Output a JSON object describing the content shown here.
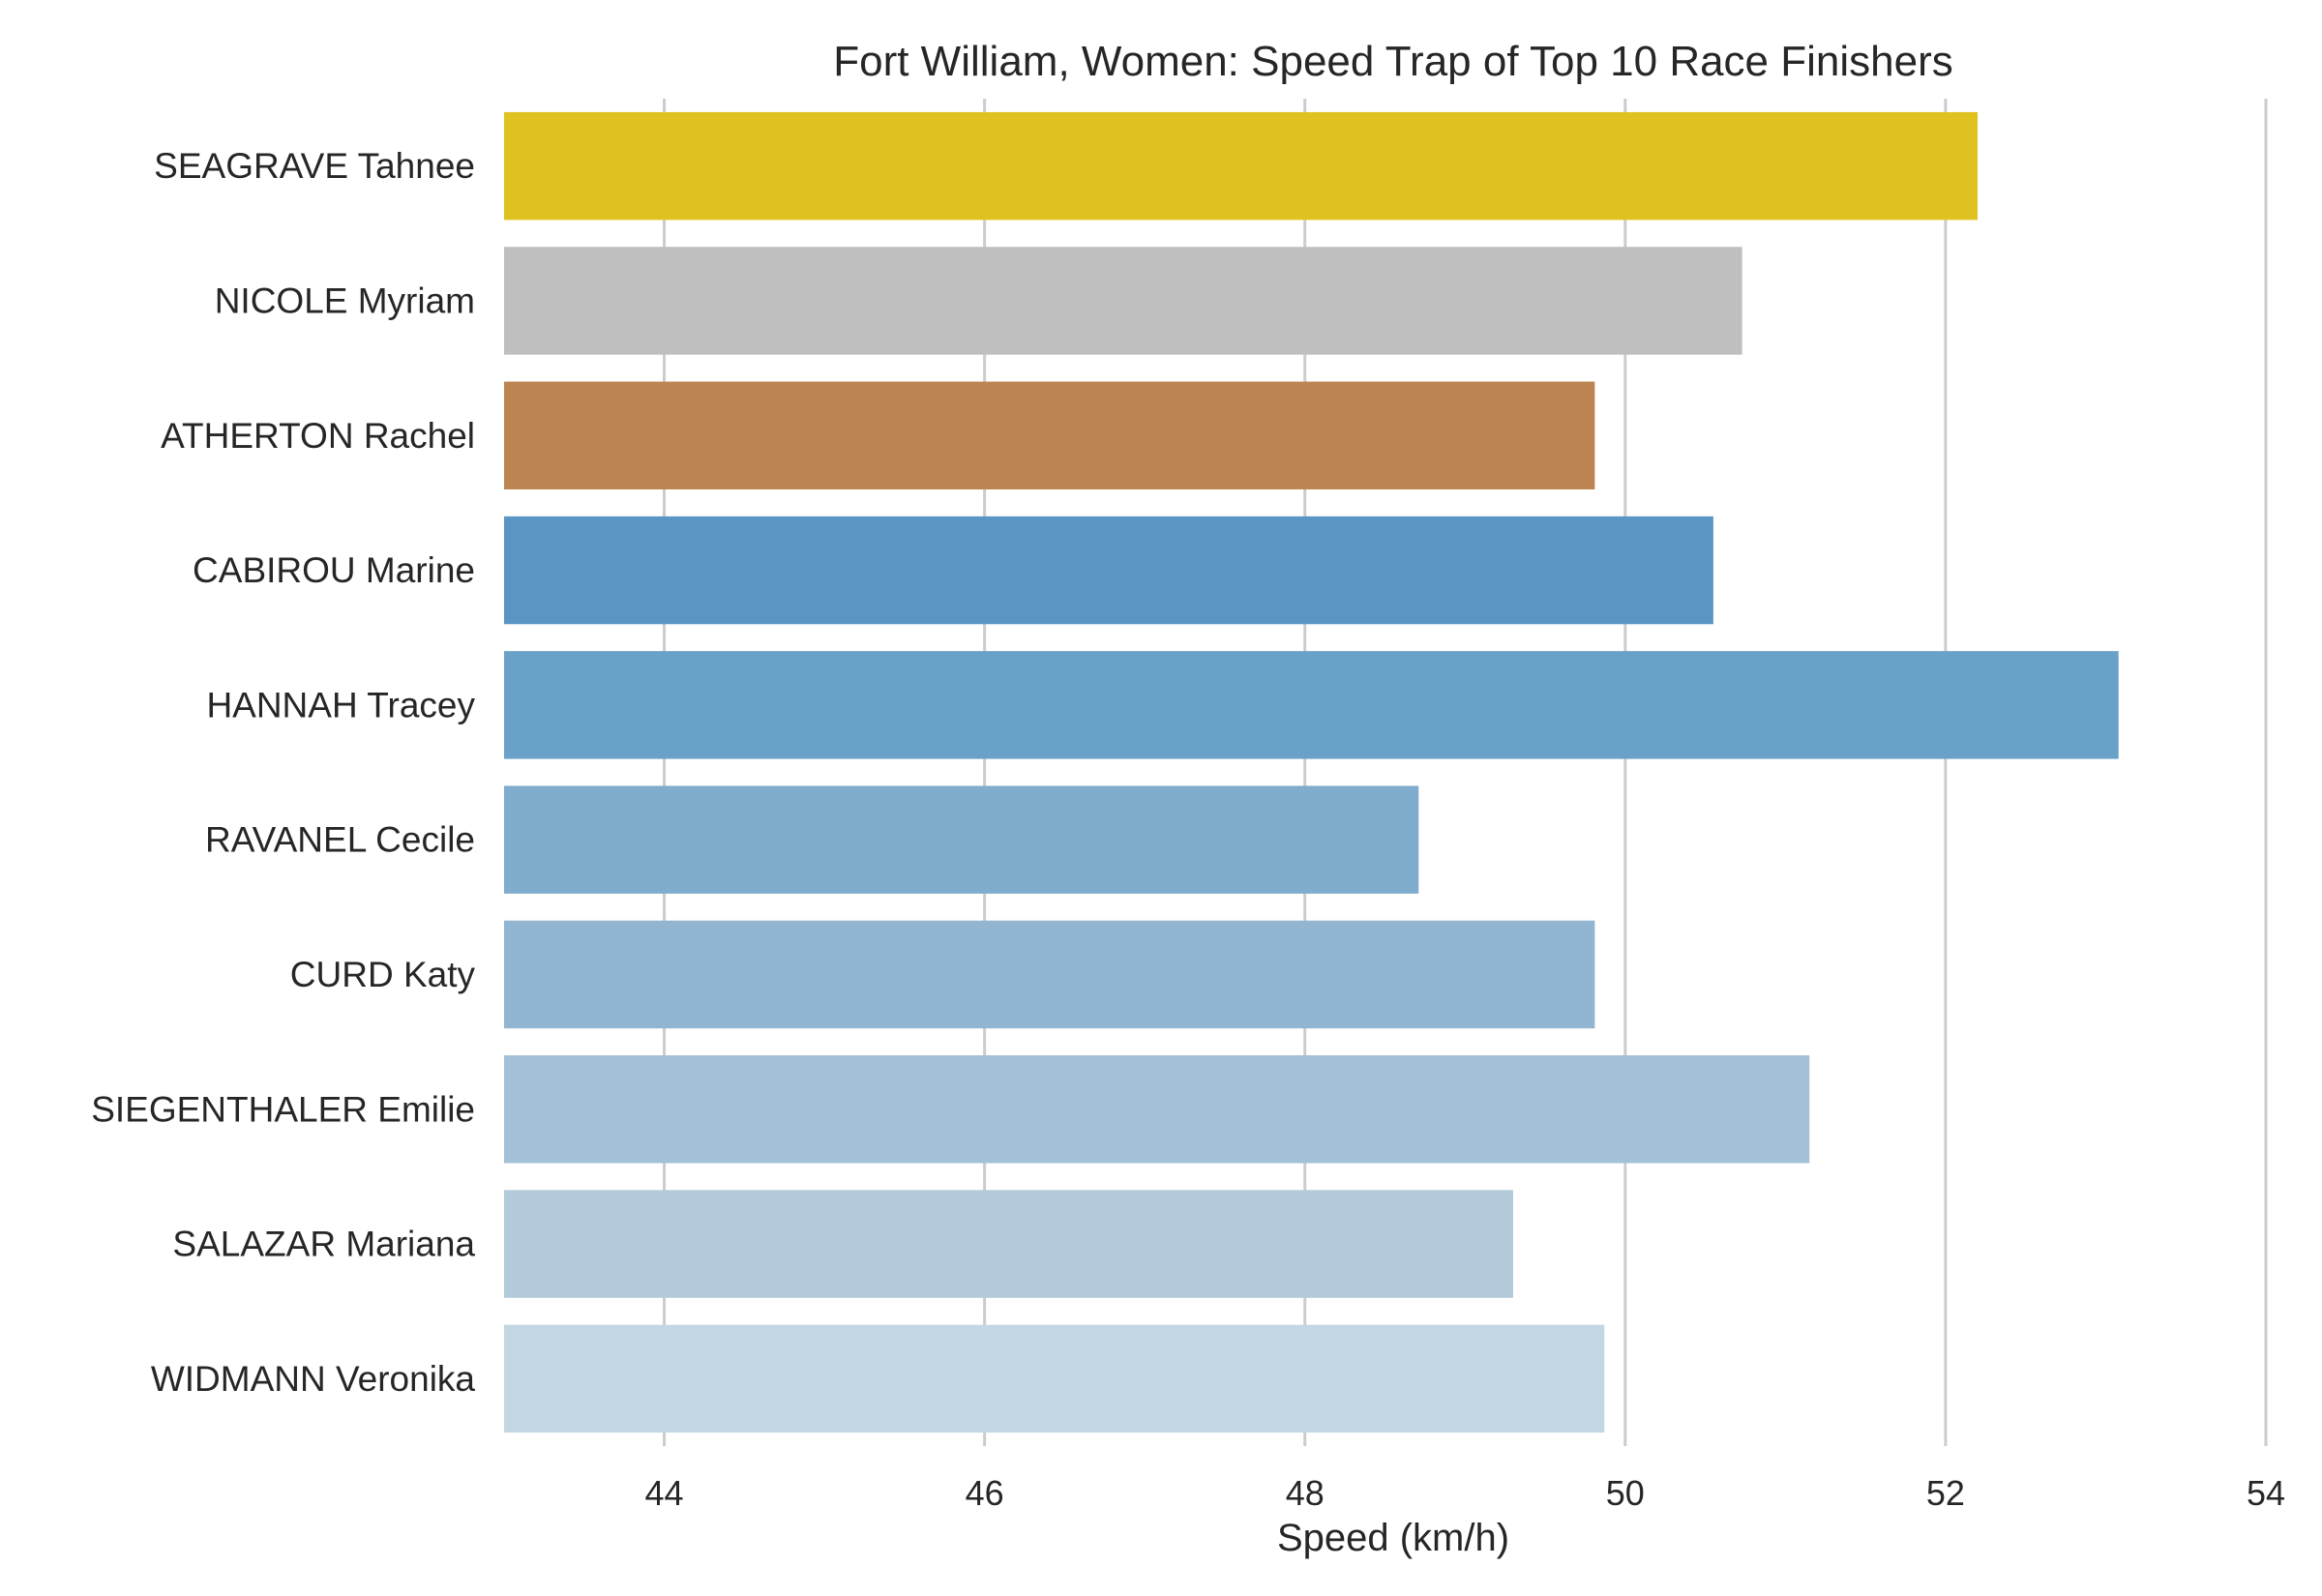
{
  "chart_data": {
    "type": "bar",
    "orientation": "horizontal",
    "title": "Fort William, Women: Speed Trap of Top 10 Race Finishers",
    "xlabel": "Speed (km/h)",
    "ylabel": "",
    "xlim": [
      43,
      54
    ],
    "xticks": [
      44,
      46,
      48,
      50,
      52,
      54
    ],
    "grid": "vertical",
    "categories": [
      "SEAGRAVE Tahnee",
      "NICOLE Myriam",
      "ATHERTON Rachel",
      "CABIROU Marine",
      "HANNAH Tracey",
      "RAVANEL Cecile",
      "CURD Katy",
      "SIEGENTHALER Emilie",
      "SALAZAR Mariana",
      "WIDMANN Veronika"
    ],
    "values": [
      52.2,
      50.73,
      49.81,
      50.55,
      53.08,
      48.71,
      49.81,
      51.15,
      49.3,
      49.87
    ],
    "colors": [
      "#dfc21f",
      "#bfbfbf",
      "#bc8450",
      "#5a95c3",
      "#6aa1c8",
      "#80acce",
      "#92b6d1",
      "#a2c0d6",
      "#b2cada",
      "#c2d7e2"
    ]
  }
}
